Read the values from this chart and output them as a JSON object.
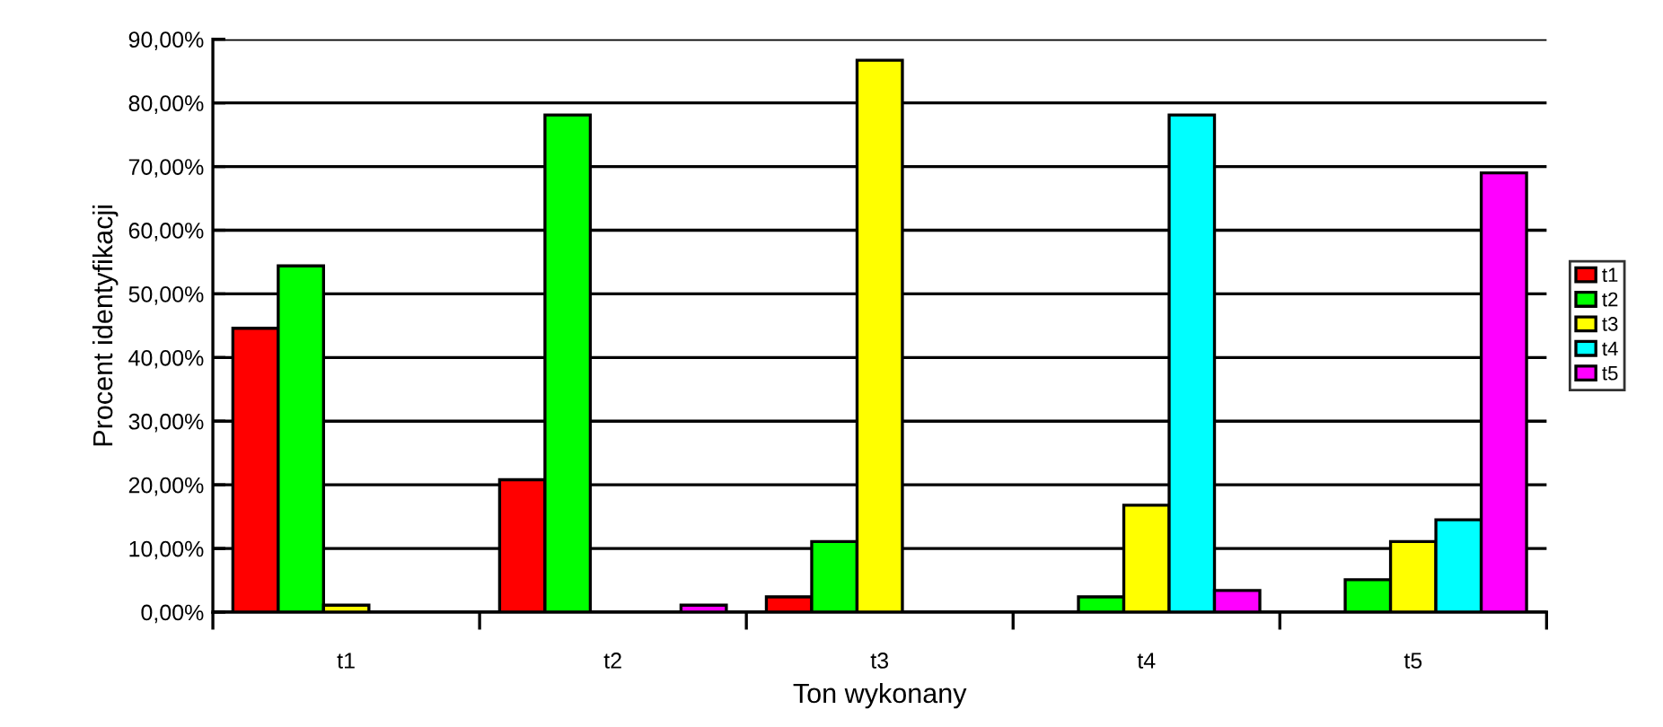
{
  "chart_data": {
    "type": "bar",
    "xlabel": "Ton wykonany",
    "ylabel": "Procent identyfikacji",
    "categories": [
      "t1",
      "t2",
      "t3",
      "t4",
      "t5"
    ],
    "series": [
      {
        "name": "t1",
        "color": "#ff0000",
        "values": [
          44.6,
          20.8,
          2.4,
          null,
          null
        ]
      },
      {
        "name": "t2",
        "color": "#00ff00",
        "values": [
          54.4,
          78.1,
          11.1,
          2.4,
          5.1
        ]
      },
      {
        "name": "t3",
        "color": "#ffff00",
        "values": [
          1.1,
          null,
          86.7,
          16.8,
          11.1
        ]
      },
      {
        "name": "t4",
        "color": "#00ffff",
        "values": [
          null,
          null,
          null,
          78.1,
          14.5
        ]
      },
      {
        "name": "t5",
        "color": "#ff00ff",
        "values": [
          null,
          1.1,
          null,
          3.4,
          69.0
        ]
      }
    ],
    "ylim": [
      0,
      90
    ],
    "yticks": [
      {
        "value": 0,
        "label": "0,00%"
      },
      {
        "value": 10,
        "label": "10,00%"
      },
      {
        "value": 20,
        "label": "20,00%"
      },
      {
        "value": 30,
        "label": "30,00%"
      },
      {
        "value": 40,
        "label": "40,00%"
      },
      {
        "value": 50,
        "label": "50,00%"
      },
      {
        "value": 60,
        "label": "60,00%"
      },
      {
        "value": 70,
        "label": "70,00%"
      },
      {
        "value": 80,
        "label": "80,00%"
      },
      {
        "value": 90,
        "label": "90,00%"
      }
    ],
    "grid": "y",
    "legend": "right"
  }
}
